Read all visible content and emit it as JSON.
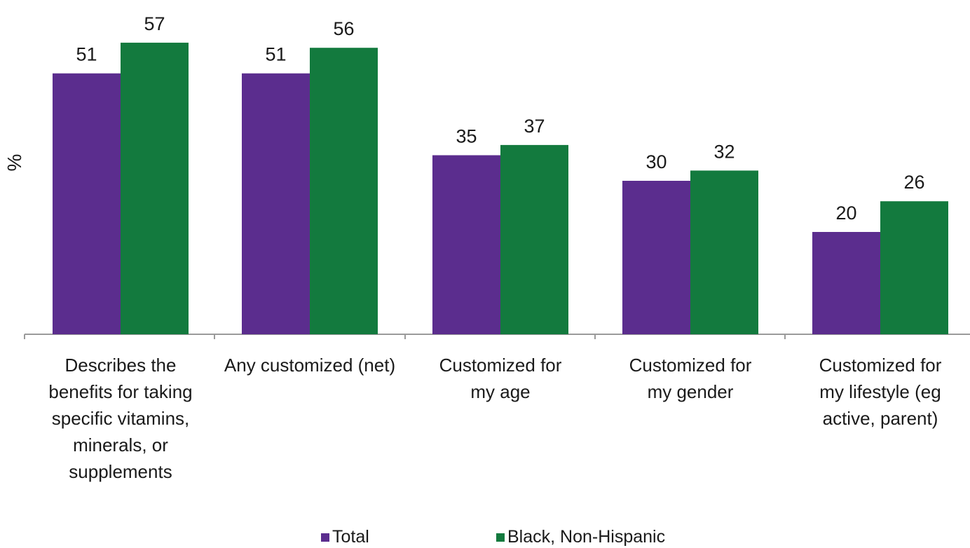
{
  "chart_data": {
    "type": "bar",
    "ylabel": "%",
    "ylim": [
      0,
      60
    ],
    "grid": false,
    "legend_position": "bottom",
    "categories": [
      [
        "Describes the",
        "benefits for taking",
        "specific vitamins,",
        "minerals, or",
        "supplements"
      ],
      [
        "Any customized (net)"
      ],
      [
        "Customized for",
        "my age"
      ],
      [
        "Customized for",
        "my gender"
      ],
      [
        "Customized for",
        "my lifestyle (eg",
        "active, parent)"
      ]
    ],
    "series": [
      {
        "name": "Total",
        "color": "#5b2d8e",
        "values": [
          51,
          51,
          35,
          30,
          20
        ]
      },
      {
        "name": "Black, Non-Hispanic",
        "color": "#137a3e",
        "values": [
          57,
          56,
          37,
          32,
          26
        ]
      }
    ]
  }
}
